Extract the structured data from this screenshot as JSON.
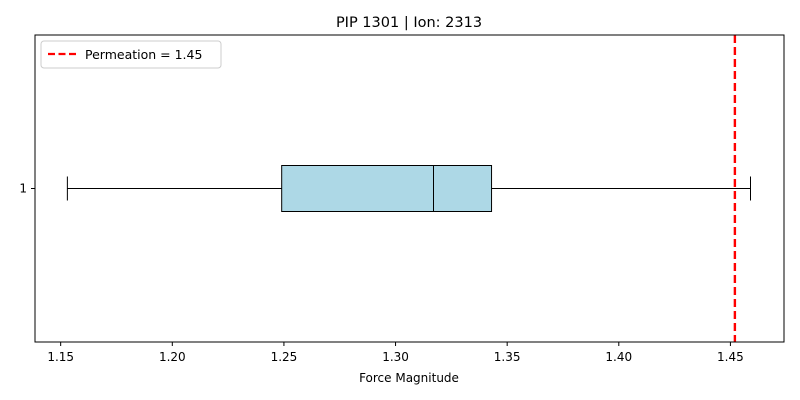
{
  "chart_data": {
    "type": "box",
    "title": "PIP 1301 | Ion: 2313",
    "xlabel": "Force Magnitude",
    "ylabel": "",
    "xlim": [
      1.1385,
      1.474
    ],
    "xticks": [
      1.15,
      1.2,
      1.25,
      1.3,
      1.35,
      1.4,
      1.45
    ],
    "xtick_labels": [
      "1.15",
      "1.20",
      "1.25",
      "1.30",
      "1.35",
      "1.40",
      "1.45"
    ],
    "orientation": "horizontal",
    "grid": false,
    "legend_position": "top-left",
    "boxes": [
      {
        "label": "1",
        "whisker_low": 1.153,
        "q1": 1.249,
        "median": 1.317,
        "q3": 1.343,
        "whisker_high": 1.459,
        "fill_color": "#add8e6"
      }
    ],
    "reference_lines": [
      {
        "label": "Permeation = 1.45",
        "value": 1.452,
        "color": "#ff0000",
        "style": "dashed"
      }
    ]
  }
}
